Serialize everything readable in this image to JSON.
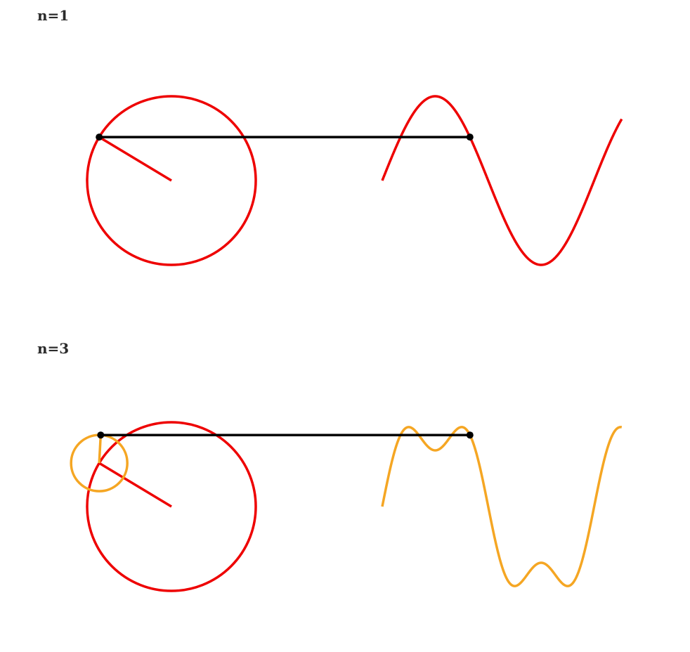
{
  "colors": {
    "harmonic_1": "#ee0000",
    "harmonic_3": "#f5a623",
    "connector": "#000000",
    "text": "#2b2b2b",
    "background": "#ffffff"
  },
  "panels": [
    {
      "id": "n1",
      "label": "n=1",
      "terms": 1,
      "phase": 2.6,
      "wave_color_key": "harmonic_1"
    },
    {
      "id": "n3",
      "label": "n=3",
      "terms": 3,
      "phase": 2.6,
      "wave_color_key": "harmonic_3"
    }
  ]
}
